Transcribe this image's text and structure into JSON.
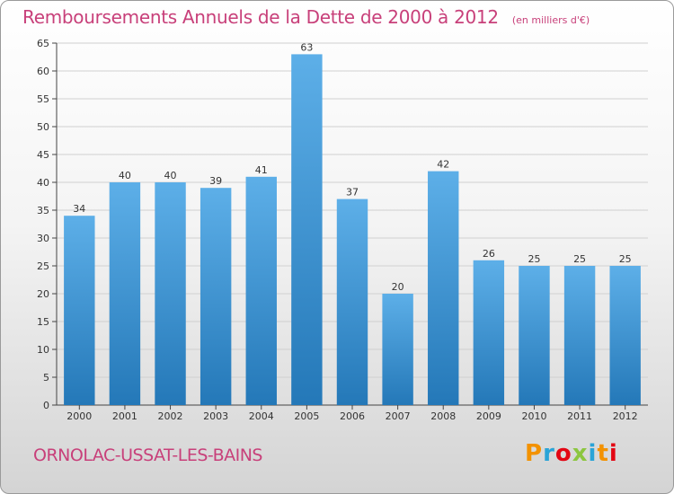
{
  "header": {
    "title": "Remboursements Annuels de la Dette de 2000 à 2012",
    "subtitle": "(en milliers d'€)"
  },
  "footer": {
    "commune": "ORNOLAC-USSAT-LES-BAINS",
    "logo_text": "Proxiti",
    "logo_colors": [
      "#f39200",
      "#2aa4d7",
      "#e30613",
      "#8cc63f",
      "#2aa4d7",
      "#f39200",
      "#e30613"
    ]
  },
  "colors": {
    "title": "#c8407a",
    "bar_top": "#5dafe8",
    "bar_bottom": "#2478b8",
    "grid": "#d0d0d0",
    "axis": "#444444"
  },
  "chart_data": {
    "type": "bar",
    "categories": [
      "2000",
      "2001",
      "2002",
      "2003",
      "2004",
      "2005",
      "2006",
      "2007",
      "2008",
      "2009",
      "2010",
      "2011",
      "2012"
    ],
    "values": [
      34,
      40,
      40,
      39,
      41,
      63,
      37,
      20,
      42,
      26,
      25,
      25,
      25
    ],
    "title": "Remboursements Annuels de la Dette de 2000 à 2012",
    "subtitle": "(en milliers d'€)",
    "xlabel": "",
    "ylabel": "",
    "ylim": [
      0,
      65
    ],
    "yticks": [
      0,
      5,
      10,
      15,
      20,
      25,
      30,
      35,
      40,
      45,
      50,
      55,
      60,
      65
    ],
    "grid": true,
    "legend": "none"
  }
}
